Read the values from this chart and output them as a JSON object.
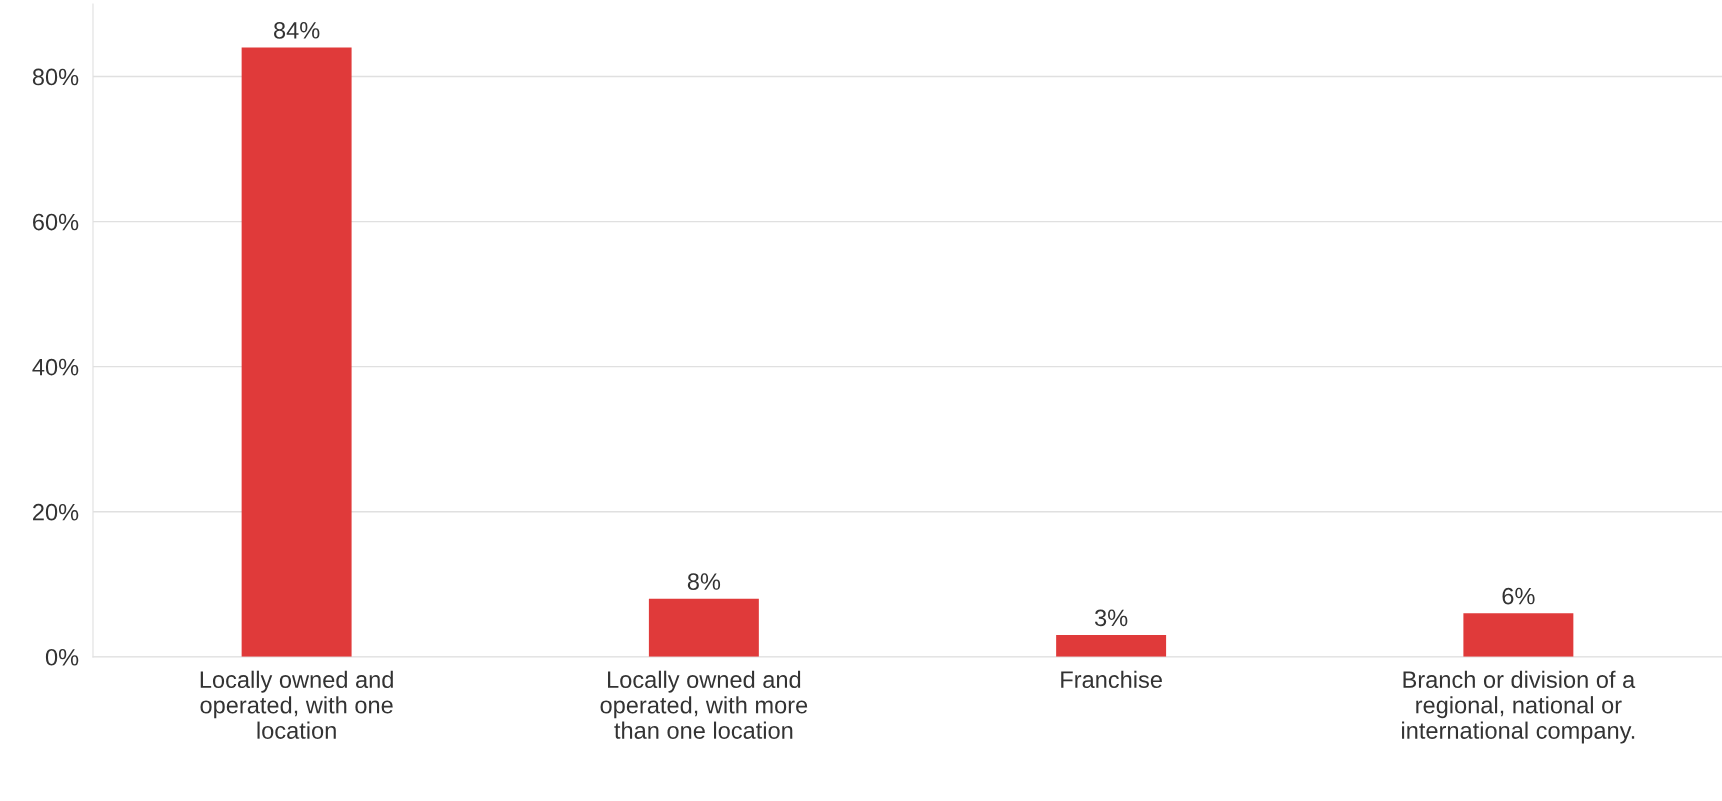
{
  "chart_data": {
    "type": "bar",
    "categories": [
      "Locally owned and\noperated, with one\nlocation",
      "Locally owned and\noperated, with more\nthan one location",
      "Franchise",
      "Branch or division of a\nregional, national or\ninternational company."
    ],
    "values": [
      84,
      8,
      3,
      6
    ],
    "value_labels": [
      "84%",
      "8%",
      "3%",
      "6%"
    ],
    "color": "#e03a3a",
    "ylim": [
      0,
      90
    ],
    "yticks": [
      {
        "value": 0,
        "label": "0%"
      },
      {
        "value": 20,
        "label": "20%"
      },
      {
        "value": 40,
        "label": "40%"
      },
      {
        "value": 60,
        "label": "60%"
      },
      {
        "value": 80,
        "label": "80%"
      }
    ],
    "grid": "y",
    "legend": false
  }
}
